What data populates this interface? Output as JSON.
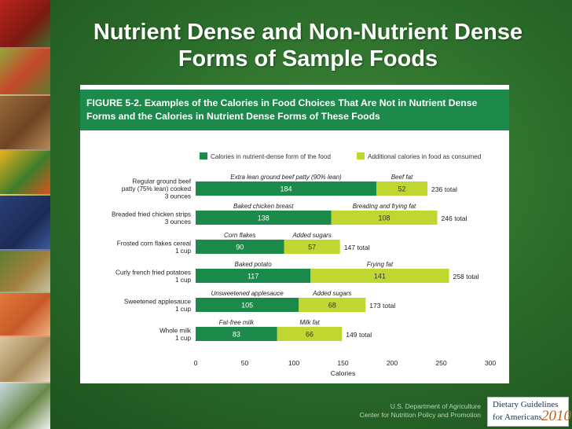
{
  "slide": {
    "title": "Nutrient Dense and Non-Nutrient Dense Forms of Sample Foods",
    "footer_line1": "U.S. Department of Agriculture",
    "footer_line2": "Center for Nutrition Policy and Promotion",
    "logo": {
      "line1": "Dietary Guidelines",
      "line2": "for Americans",
      "year": "2010"
    }
  },
  "colors": {
    "nutrient_dense": "#1b8a4a",
    "additional": "#bfd730",
    "banner": "#1b8a4a"
  },
  "chart_data": {
    "type": "bar",
    "orientation": "horizontal",
    "stacked": true,
    "title": "FIGURE 5-2. Examples of the Calories in Food Choices That Are Not in Nutrient Dense Forms and the Calories in Nutrient Dense Forms of These Foods",
    "xlabel": "Calories",
    "xlim": [
      0,
      300
    ],
    "xticks": [
      0,
      50,
      100,
      150,
      200,
      250,
      300
    ],
    "legend": [
      "Calories in nutrient-dense form of the food",
      "Additional calories in food as consumed"
    ],
    "legend_position": "top",
    "categories": [
      [
        "Regular ground beef",
        "patty (75% lean) cooked",
        "3 ounces"
      ],
      [
        "Breaded fried chicken strips",
        "3 ounces"
      ],
      [
        "Frosted corn flakes cereal",
        "1 cup"
      ],
      [
        "Curly french fried potatoes",
        "1 cup"
      ],
      [
        "Sweetened applesauce",
        "1 cup"
      ],
      [
        "Whole milk",
        "1 cup"
      ]
    ],
    "series": [
      {
        "name": "Calories in nutrient-dense form of the food",
        "values": [
          184,
          138,
          90,
          117,
          105,
          83
        ],
        "labels": [
          "Extra lean ground beef patty (90% lean)",
          "Baked chicken breast",
          "Corn flakes",
          "Baked potato",
          "Unsweetened applesauce",
          "Fat-free milk"
        ]
      },
      {
        "name": "Additional calories in food as consumed",
        "values": [
          52,
          108,
          57,
          141,
          68,
          66
        ],
        "labels": [
          "Beef fat",
          "Breading and frying fat",
          "Added sugars",
          "Frying fat",
          "Added sugars",
          "Milk fat"
        ]
      }
    ],
    "totals": [
      "236 total",
      "246 total",
      "147 total",
      "258 total",
      "173 total",
      "149 total"
    ]
  }
}
